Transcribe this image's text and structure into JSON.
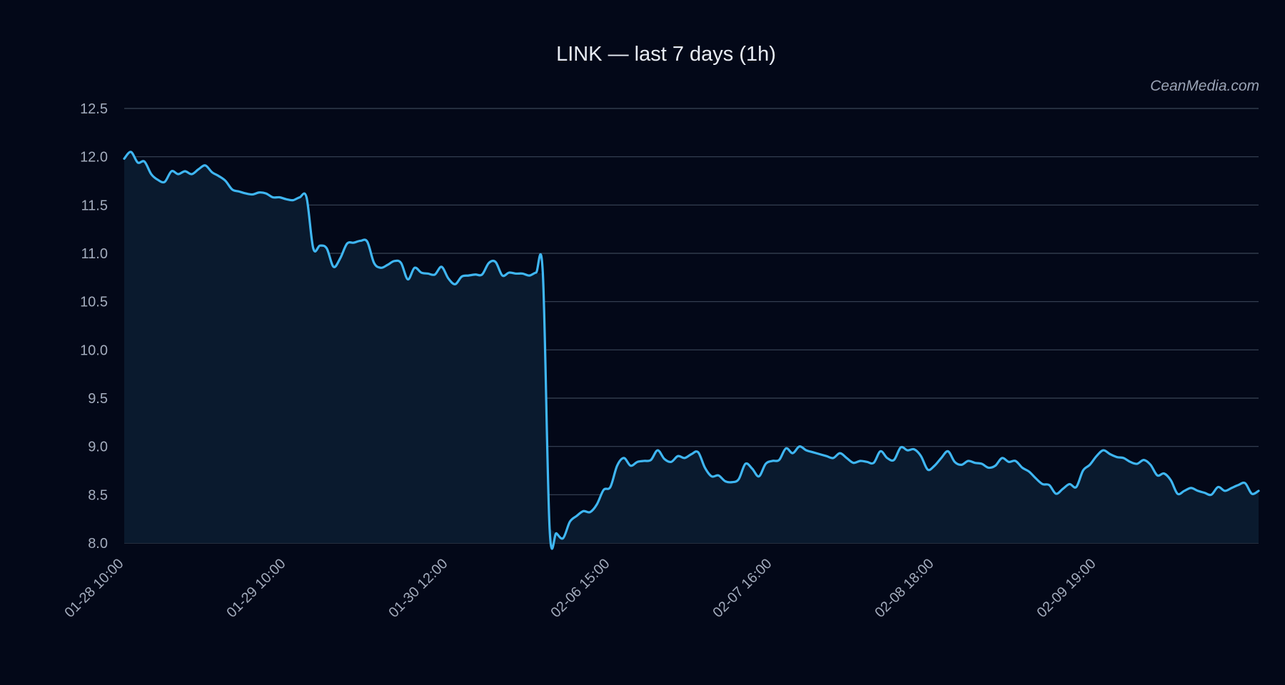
{
  "chart_data": {
    "type": "area",
    "title": "LINK — last 7 days (1h)",
    "watermark": "CeanMedia.com",
    "xlabel": "",
    "ylabel": "",
    "ylim": [
      8.0,
      12.5
    ],
    "yticks": [
      "8.0",
      "8.5",
      "9.0",
      "9.5",
      "10.0",
      "10.5",
      "11.0",
      "11.5",
      "12.0",
      "12.5"
    ],
    "xticks": [
      {
        "index": 0,
        "label": "01-28 10:00"
      },
      {
        "index": 24,
        "label": "01-29 10:00"
      },
      {
        "index": 48,
        "label": "01-30 12:00"
      },
      {
        "index": 72,
        "label": "02-06 15:00"
      },
      {
        "index": 96,
        "label": "02-07 16:00"
      },
      {
        "index": 120,
        "label": "02-08 18:00"
      },
      {
        "index": 144,
        "label": "02-09 19:00"
      }
    ],
    "grid": true,
    "colors": {
      "background": "#030818",
      "line": "#3fb6f2",
      "area_fill": "#0a1a2e",
      "grid": "#3a4456"
    },
    "series": [
      {
        "values": [
          11.98,
          12.05,
          11.94,
          11.95,
          11.82,
          11.76,
          11.74,
          11.85,
          11.82,
          11.85,
          11.82,
          11.87,
          11.91,
          11.84,
          11.8,
          11.75,
          11.66,
          11.64,
          11.62,
          11.61,
          11.63,
          11.62,
          11.58,
          11.58,
          11.56,
          11.55,
          11.58,
          11.58,
          11.05,
          11.08,
          11.05,
          10.86,
          10.95,
          11.1,
          11.11,
          11.13,
          11.12,
          10.9,
          10.85,
          10.88,
          10.92,
          10.9,
          10.73,
          10.85,
          10.8,
          10.79,
          10.78,
          10.86,
          10.74,
          10.68,
          10.76,
          10.77,
          10.78,
          10.78,
          10.9,
          10.91,
          10.77,
          10.8,
          10.79,
          10.79,
          10.77,
          10.8,
          10.79,
          8.15,
          8.1,
          8.05,
          8.22,
          8.28,
          8.33,
          8.32,
          8.4,
          8.55,
          8.58,
          8.8,
          8.88,
          8.8,
          8.84,
          8.85,
          8.86,
          8.96,
          8.87,
          8.84,
          8.9,
          8.88,
          8.92,
          8.94,
          8.78,
          8.69,
          8.7,
          8.64,
          8.63,
          8.66,
          8.82,
          8.77,
          8.69,
          8.82,
          8.85,
          8.86,
          8.98,
          8.93,
          9.0,
          8.96,
          8.94,
          8.92,
          8.9,
          8.88,
          8.93,
          8.88,
          8.83,
          8.85,
          8.84,
          8.83,
          8.95,
          8.88,
          8.86,
          8.99,
          8.96,
          8.97,
          8.9,
          8.76,
          8.8,
          8.88,
          8.95,
          8.84,
          8.81,
          8.85,
          8.83,
          8.82,
          8.78,
          8.8,
          8.88,
          8.84,
          8.85,
          8.78,
          8.74,
          8.67,
          8.61,
          8.6,
          8.51,
          8.56,
          8.61,
          8.58,
          8.75,
          8.81,
          8.9,
          8.96,
          8.92,
          8.89,
          8.88,
          8.84,
          8.82,
          8.86,
          8.81,
          8.7,
          8.72,
          8.65,
          8.51,
          8.54,
          8.57,
          8.54,
          8.52,
          8.5,
          8.58,
          8.54,
          8.57,
          8.6,
          8.62,
          8.51,
          8.54
        ]
      }
    ]
  }
}
